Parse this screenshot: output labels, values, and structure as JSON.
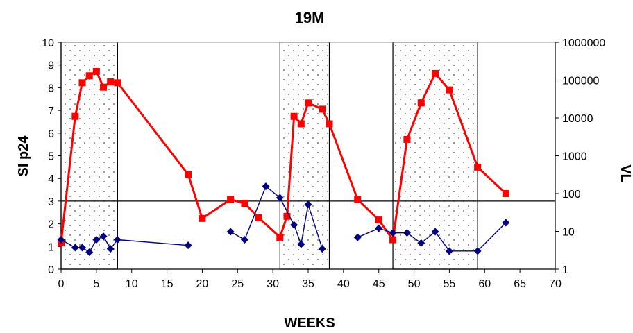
{
  "chart_data": {
    "type": "line",
    "title": "19M",
    "xlabel": "WEEKS",
    "ylabel_left": "SI p24",
    "ylabel_right": "VL",
    "x_ticks": [
      0,
      5,
      10,
      15,
      20,
      25,
      30,
      35,
      40,
      45,
      50,
      55,
      60,
      65,
      70
    ],
    "xlim": [
      0,
      70
    ],
    "y_left_ticks": [
      0,
      1,
      2,
      3,
      4,
      5,
      6,
      7,
      8,
      9,
      10
    ],
    "ylim_left": [
      0,
      10
    ],
    "y_right_ticks": [
      "1",
      "10",
      "100",
      "1000",
      "10000",
      "100000",
      "1000000"
    ],
    "ylim_right": [
      1,
      1000000
    ],
    "y_right_scale": "log",
    "threshold_line": 3,
    "shaded_periods": [
      [
        0,
        8
      ],
      [
        31,
        38
      ],
      [
        47,
        59
      ]
    ],
    "colors": {
      "vl": "#ff0000",
      "si": "#000080",
      "shade_dots": "#555555"
    },
    "series": [
      {
        "axis": "right",
        "color": "#ff0000",
        "marker": "square",
        "segments": [
          [
            [
              0,
              5
            ],
            [
              2,
              11000
            ],
            [
              3,
              85000
            ],
            [
              4,
              130000
            ],
            [
              5,
              170000
            ],
            [
              6,
              65000
            ],
            [
              7,
              90000
            ],
            [
              8,
              85000
            ],
            [
              18,
              320
            ],
            [
              20,
              22
            ],
            [
              24,
              70
            ],
            [
              26,
              55
            ],
            [
              28,
              23
            ],
            [
              31,
              7
            ],
            [
              32,
              25
            ],
            [
              33,
              11000
            ],
            [
              34,
              7000
            ],
            [
              35,
              25000
            ],
            [
              37,
              17000
            ],
            [
              38,
              7000
            ],
            [
              42,
              70
            ],
            [
              45,
              20
            ],
            [
              47,
              6
            ],
            [
              49,
              2700
            ],
            [
              51,
              25000
            ],
            [
              53,
              150000
            ],
            [
              55,
              55000
            ],
            [
              59,
              500
            ],
            [
              63,
              100
            ]
          ]
        ]
      },
      {
        "axis": "left",
        "color": "#000080",
        "marker": "diamond",
        "segments": [
          [
            [
              0,
              1.3
            ],
            [
              2,
              0.95
            ],
            [
              3,
              0.95
            ],
            [
              4,
              0.75
            ],
            [
              5,
              1.3
            ],
            [
              6,
              1.45
            ],
            [
              7,
              0.9
            ],
            [
              8,
              1.3
            ],
            [
              18,
              1.05
            ]
          ],
          [
            [
              24,
              1.65
            ],
            [
              26,
              1.3
            ],
            [
              29,
              3.65
            ],
            [
              31,
              3.15
            ],
            [
              33,
              1.95
            ],
            [
              34,
              1.1
            ],
            [
              35,
              2.85
            ],
            [
              37,
              0.9
            ]
          ],
          [
            [
              42,
              1.4
            ],
            [
              45,
              1.8
            ],
            [
              47,
              1.6
            ],
            [
              49,
              1.6
            ],
            [
              51,
              1.15
            ],
            [
              53,
              1.65
            ],
            [
              55,
              0.8
            ],
            [
              59,
              0.8
            ],
            [
              63,
              2.05
            ]
          ]
        ]
      }
    ]
  }
}
